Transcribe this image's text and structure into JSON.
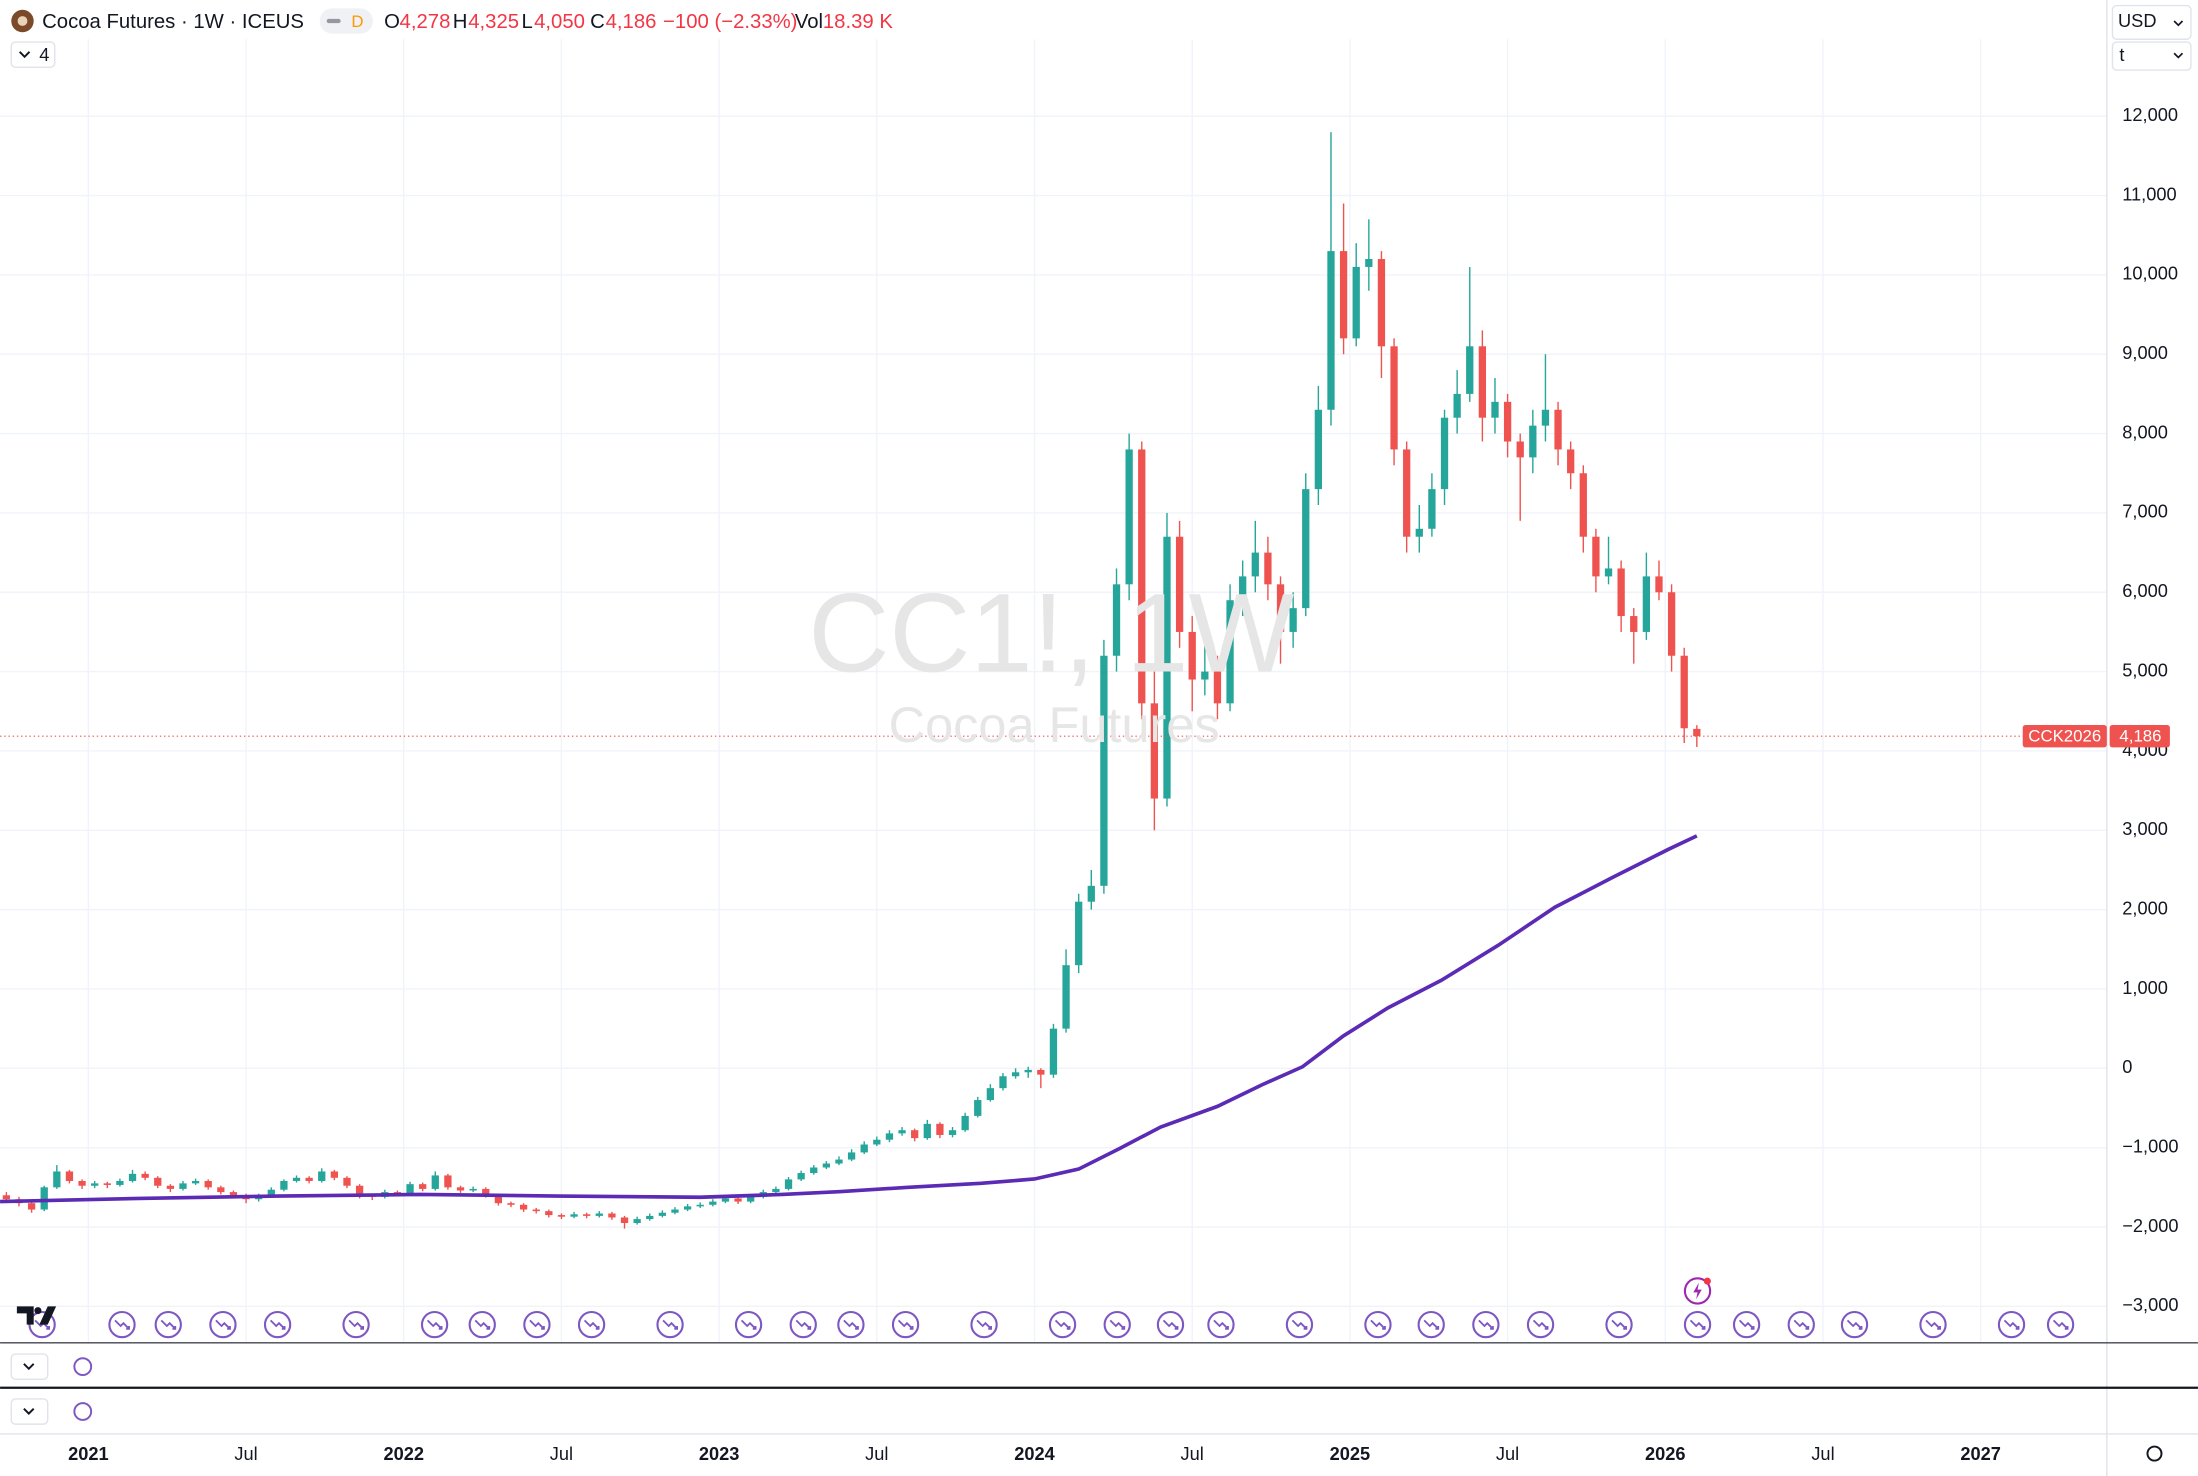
{
  "header": {
    "title": "Cocoa Futures · 1W · ICEUS",
    "badge": "D",
    "open_label": "O",
    "open": "4,278",
    "high_label": "H",
    "high": "4,325",
    "low_label": "L",
    "low": "4,050",
    "close_label": "C",
    "close": "4,186",
    "change": "−100 (−2.33%)",
    "volume_label": "Vol",
    "volume": "18.39 K"
  },
  "toolbar": {
    "collapse_count": "4",
    "currency": "USD",
    "unit": "t"
  },
  "watermark": {
    "symbol": "CC1!, 1W",
    "name": "Cocoa Futures"
  },
  "price_label": {
    "contract": "CCK2026",
    "price": "4,186"
  },
  "chart_data": {
    "type": "candlestick",
    "up_color": "#26a69a",
    "down_color": "#ef5350",
    "grid": true,
    "xlim": [
      2020.72,
      2027.4
    ],
    "ylim": [
      -3460,
      12970
    ],
    "xticks": [
      2021,
      {
        "value": 2021.5,
        "label": "Jul"
      },
      2022,
      {
        "value": 2022.5,
        "label": "Jul"
      },
      2023,
      {
        "value": 2023.5,
        "label": "Jul"
      },
      2024,
      {
        "value": 2024.5,
        "label": "Jul"
      },
      2025,
      {
        "value": 2025.5,
        "label": "Jul"
      },
      2026,
      {
        "value": 2026.5,
        "label": "Jul"
      },
      2027
    ],
    "yticks": [
      {
        "value": -3000,
        "label": "−3,000"
      },
      {
        "value": -2000,
        "label": "−2,000"
      },
      {
        "value": -1000,
        "label": "−1,000"
      },
      0,
      {
        "value": 1000,
        "label": "1,000"
      },
      {
        "value": 2000,
        "label": "2,000"
      },
      {
        "value": 3000,
        "label": "3,000"
      },
      {
        "value": 4000,
        "label": "4,000"
      },
      {
        "value": 5000,
        "label": "5,000"
      },
      {
        "value": 6000,
        "label": "6,000"
      },
      {
        "value": 7000,
        "label": "7,000"
      },
      {
        "value": 8000,
        "label": "8,000"
      },
      {
        "value": 9000,
        "label": "9,000"
      },
      {
        "value": 10000,
        "label": "10,000"
      },
      {
        "value": 11000,
        "label": "11,000"
      },
      {
        "value": 12000,
        "label": "12,000"
      }
    ],
    "x": [
      2020.74,
      2020.78,
      2020.82,
      2020.86,
      2020.9,
      2020.94,
      2020.98,
      2021.02,
      2021.06,
      2021.1,
      2021.14,
      2021.18,
      2021.22,
      2021.26,
      2021.3,
      2021.34,
      2021.38,
      2021.42,
      2021.46,
      2021.5,
      2021.54,
      2021.58,
      2021.62,
      2021.66,
      2021.7,
      2021.74,
      2021.78,
      2021.82,
      2021.86,
      2021.9,
      2021.94,
      2021.98,
      2022.02,
      2022.06,
      2022.1,
      2022.14,
      2022.18,
      2022.22,
      2022.26,
      2022.3,
      2022.34,
      2022.38,
      2022.42,
      2022.46,
      2022.5,
      2022.54,
      2022.58,
      2022.62,
      2022.66,
      2022.7,
      2022.74,
      2022.78,
      2022.82,
      2022.86,
      2022.9,
      2022.94,
      2022.98,
      2023.02,
      2023.06,
      2023.1,
      2023.14,
      2023.18,
      2023.22,
      2023.26,
      2023.3,
      2023.34,
      2023.38,
      2023.42,
      2023.46,
      2023.5,
      2023.54,
      2023.58,
      2023.62,
      2023.66,
      2023.7,
      2023.74,
      2023.78,
      2023.82,
      2023.86,
      2023.9,
      2023.94,
      2023.98,
      2024.02,
      2024.06,
      2024.1,
      2024.14,
      2024.18,
      2024.22,
      2024.26,
      2024.3,
      2024.34,
      2024.38,
      2024.42,
      2024.46,
      2024.5,
      2024.54,
      2024.58,
      2024.62,
      2024.66,
      2024.7,
      2024.74,
      2024.78,
      2024.82,
      2024.86,
      2024.9,
      2024.94,
      2024.98,
      2025.02,
      2025.06,
      2025.1,
      2025.14,
      2025.18,
      2025.22,
      2025.26,
      2025.3,
      2025.34,
      2025.38,
      2025.42,
      2025.46,
      2025.5,
      2025.54,
      2025.58,
      2025.62,
      2025.66,
      2025.7,
      2025.74,
      2025.78,
      2025.82,
      2025.86,
      2025.9,
      2025.94,
      2025.98,
      2026.02,
      2026.06,
      2026.1
    ],
    "ohlc": [
      [
        -1600,
        -1560,
        -1690,
        -1650
      ],
      [
        -1650,
        -1620,
        -1740,
        -1700
      ],
      [
        -1700,
        -1680,
        -1820,
        -1780
      ],
      [
        -1780,
        -1480,
        -1800,
        -1500
      ],
      [
        -1500,
        -1220,
        -1520,
        -1300
      ],
      [
        -1300,
        -1280,
        -1450,
        -1420
      ],
      [
        -1420,
        -1400,
        -1520,
        -1480
      ],
      [
        -1480,
        -1420,
        -1510,
        -1450
      ],
      [
        -1450,
        -1430,
        -1510,
        -1470
      ],
      [
        -1470,
        -1390,
        -1490,
        -1420
      ],
      [
        -1420,
        -1280,
        -1440,
        -1330
      ],
      [
        -1330,
        -1300,
        -1410,
        -1380
      ],
      [
        -1380,
        -1360,
        -1510,
        -1480
      ],
      [
        -1480,
        -1460,
        -1560,
        -1520
      ],
      [
        -1520,
        -1420,
        -1540,
        -1450
      ],
      [
        -1450,
        -1390,
        -1470,
        -1420
      ],
      [
        -1420,
        -1400,
        -1530,
        -1500
      ],
      [
        -1500,
        -1480,
        -1590,
        -1560
      ],
      [
        -1560,
        -1540,
        -1630,
        -1600
      ],
      [
        -1600,
        -1580,
        -1700,
        -1650
      ],
      [
        -1650,
        -1580,
        -1680,
        -1600
      ],
      [
        -1600,
        -1500,
        -1620,
        -1530
      ],
      [
        -1530,
        -1400,
        -1550,
        -1420
      ],
      [
        -1420,
        -1350,
        -1440,
        -1380
      ],
      [
        -1380,
        -1360,
        -1450,
        -1420
      ],
      [
        -1420,
        -1260,
        -1440,
        -1300
      ],
      [
        -1300,
        -1280,
        -1410,
        -1380
      ],
      [
        -1380,
        -1360,
        -1510,
        -1480
      ],
      [
        -1480,
        -1460,
        -1640,
        -1600
      ],
      [
        -1600,
        -1580,
        -1660,
        -1620
      ],
      [
        -1620,
        -1530,
        -1640,
        -1560
      ],
      [
        -1560,
        -1540,
        -1610,
        -1580
      ],
      [
        -1580,
        -1430,
        -1600,
        -1460
      ],
      [
        -1460,
        -1440,
        -1550,
        -1520
      ],
      [
        -1520,
        -1300,
        -1540,
        -1350
      ],
      [
        -1350,
        -1330,
        -1530,
        -1500
      ],
      [
        -1500,
        -1480,
        -1570,
        -1540
      ],
      [
        -1540,
        -1490,
        -1560,
        -1520
      ],
      [
        -1520,
        -1500,
        -1630,
        -1600
      ],
      [
        -1600,
        -1580,
        -1730,
        -1700
      ],
      [
        -1700,
        -1680,
        -1750,
        -1720
      ],
      [
        -1720,
        -1700,
        -1810,
        -1780
      ],
      [
        -1780,
        -1760,
        -1830,
        -1800
      ],
      [
        -1800,
        -1780,
        -1880,
        -1850
      ],
      [
        -1850,
        -1830,
        -1900,
        -1870
      ],
      [
        -1870,
        -1810,
        -1890,
        -1840
      ],
      [
        -1840,
        -1820,
        -1890,
        -1860
      ],
      [
        -1860,
        -1800,
        -1880,
        -1830
      ],
      [
        -1830,
        -1810,
        -1910,
        -1880
      ],
      [
        -1880,
        -1860,
        -2020,
        -1950
      ],
      [
        -1950,
        -1870,
        -1970,
        -1900
      ],
      [
        -1900,
        -1830,
        -1920,
        -1860
      ],
      [
        -1860,
        -1790,
        -1880,
        -1820
      ],
      [
        -1820,
        -1750,
        -1840,
        -1780
      ],
      [
        -1780,
        -1710,
        -1800,
        -1740
      ],
      [
        -1740,
        -1690,
        -1760,
        -1720
      ],
      [
        -1720,
        -1650,
        -1740,
        -1680
      ],
      [
        -1680,
        -1610,
        -1700,
        -1640
      ],
      [
        -1640,
        -1620,
        -1710,
        -1680
      ],
      [
        -1680,
        -1590,
        -1700,
        -1620
      ],
      [
        -1620,
        -1530,
        -1640,
        -1560
      ],
      [
        -1560,
        -1490,
        -1580,
        -1520
      ],
      [
        -1520,
        -1370,
        -1540,
        -1400
      ],
      [
        -1400,
        -1290,
        -1420,
        -1320
      ],
      [
        -1320,
        -1220,
        -1340,
        -1250
      ],
      [
        -1250,
        -1170,
        -1270,
        -1200
      ],
      [
        -1200,
        -1110,
        -1220,
        -1150
      ],
      [
        -1150,
        -1020,
        -1170,
        -1060
      ],
      [
        -1060,
        -920,
        -1080,
        -960
      ],
      [
        -960,
        -860,
        -980,
        -900
      ],
      [
        -900,
        -780,
        -930,
        -820
      ],
      [
        -820,
        -740,
        -850,
        -780
      ],
      [
        -780,
        -760,
        -920,
        -880
      ],
      [
        -880,
        -650,
        -900,
        -700
      ],
      [
        -700,
        -680,
        -880,
        -840
      ],
      [
        -840,
        -740,
        -870,
        -780
      ],
      [
        -780,
        -560,
        -800,
        -600
      ],
      [
        -600,
        -360,
        -620,
        -400
      ],
      [
        -400,
        -200,
        -420,
        -250
      ],
      [
        -250,
        -60,
        -280,
        -100
      ],
      [
        -100,
        0,
        -130,
        -50
      ],
      [
        -50,
        20,
        -120,
        -20
      ],
      [
        -20,
        0,
        -250,
        -80
      ],
      [
        -80,
        560,
        -120,
        500
      ],
      [
        500,
        1500,
        450,
        1300
      ],
      [
        1300,
        2200,
        1200,
        2100
      ],
      [
        2100,
        2500,
        2000,
        2300
      ],
      [
        2300,
        5400,
        2200,
        5200
      ],
      [
        5200,
        6300,
        5000,
        6100
      ],
      [
        6100,
        8000,
        5900,
        7800
      ],
      [
        7800,
        7900,
        4400,
        4600
      ],
      [
        4600,
        5000,
        3000,
        3400
      ],
      [
        3400,
        7000,
        3300,
        6700
      ],
      [
        6700,
        6900,
        5300,
        5500
      ],
      [
        5500,
        5700,
        4500,
        4900
      ],
      [
        4900,
        5400,
        4700,
        5000
      ],
      [
        5000,
        5200,
        4400,
        4600
      ],
      [
        4600,
        6100,
        4500,
        5900
      ],
      [
        5900,
        6400,
        5700,
        6200
      ],
      [
        6200,
        6900,
        6000,
        6500
      ],
      [
        6500,
        6700,
        5900,
        6100
      ],
      [
        6100,
        6200,
        5100,
        5500
      ],
      [
        5500,
        6000,
        5300,
        5800
      ],
      [
        5800,
        7500,
        5700,
        7300
      ],
      [
        7300,
        8600,
        7100,
        8300
      ],
      [
        8300,
        11800,
        8100,
        10300
      ],
      [
        10300,
        10900,
        9000,
        9200
      ],
      [
        9200,
        10400,
        9100,
        10100
      ],
      [
        10100,
        10700,
        9800,
        10200
      ],
      [
        10200,
        10300,
        8700,
        9100
      ],
      [
        9100,
        9200,
        7600,
        7800
      ],
      [
        7800,
        7900,
        6500,
        6700
      ],
      [
        6700,
        7100,
        6500,
        6800
      ],
      [
        6800,
        7500,
        6700,
        7300
      ],
      [
        7300,
        8300,
        7100,
        8200
      ],
      [
        8200,
        8800,
        8000,
        8500
      ],
      [
        8500,
        10100,
        8400,
        9100
      ],
      [
        9100,
        9300,
        7900,
        8200
      ],
      [
        8200,
        8700,
        8000,
        8400
      ],
      [
        8400,
        8500,
        7700,
        7900
      ],
      [
        7900,
        8000,
        6900,
        7700
      ],
      [
        7700,
        8300,
        7500,
        8100
      ],
      [
        8100,
        9000,
        7900,
        8300
      ],
      [
        8300,
        8400,
        7600,
        7800
      ],
      [
        7800,
        7900,
        7300,
        7500
      ],
      [
        7500,
        7600,
        6500,
        6700
      ],
      [
        6700,
        6800,
        6000,
        6200
      ],
      [
        6200,
        6700,
        6100,
        6300
      ],
      [
        6300,
        6400,
        5500,
        5700
      ],
      [
        5700,
        5800,
        5100,
        5500
      ],
      [
        5500,
        6500,
        5400,
        6200
      ],
      [
        6200,
        6400,
        5900,
        6000
      ],
      [
        6000,
        6100,
        5000,
        5200
      ],
      [
        5200,
        5300,
        4100,
        4286
      ],
      [
        4278,
        4325,
        4050,
        4186
      ]
    ],
    "overlay": {
      "color": "#5b2bb5",
      "x": [
        2020.72,
        2021.16,
        2021.6,
        2022.05,
        2022.49,
        2022.94,
        2023.2,
        2023.38,
        2023.6,
        2023.83,
        2024.0,
        2024.14,
        2024.27,
        2024.4,
        2024.58,
        2024.72,
        2024.85,
        2024.98,
        2025.12,
        2025.29,
        2025.47,
        2025.65,
        2025.83,
        2026.01,
        2026.1
      ],
      "values": [
        -1680,
        -1640,
        -1610,
        -1590,
        -1610,
        -1625,
        -1590,
        -1555,
        -1500,
        -1450,
        -1395,
        -1270,
        -1010,
        -740,
        -480,
        -210,
        20,
        410,
        760,
        1110,
        1550,
        2030,
        2400,
        2760,
        2930
      ]
    }
  }
}
